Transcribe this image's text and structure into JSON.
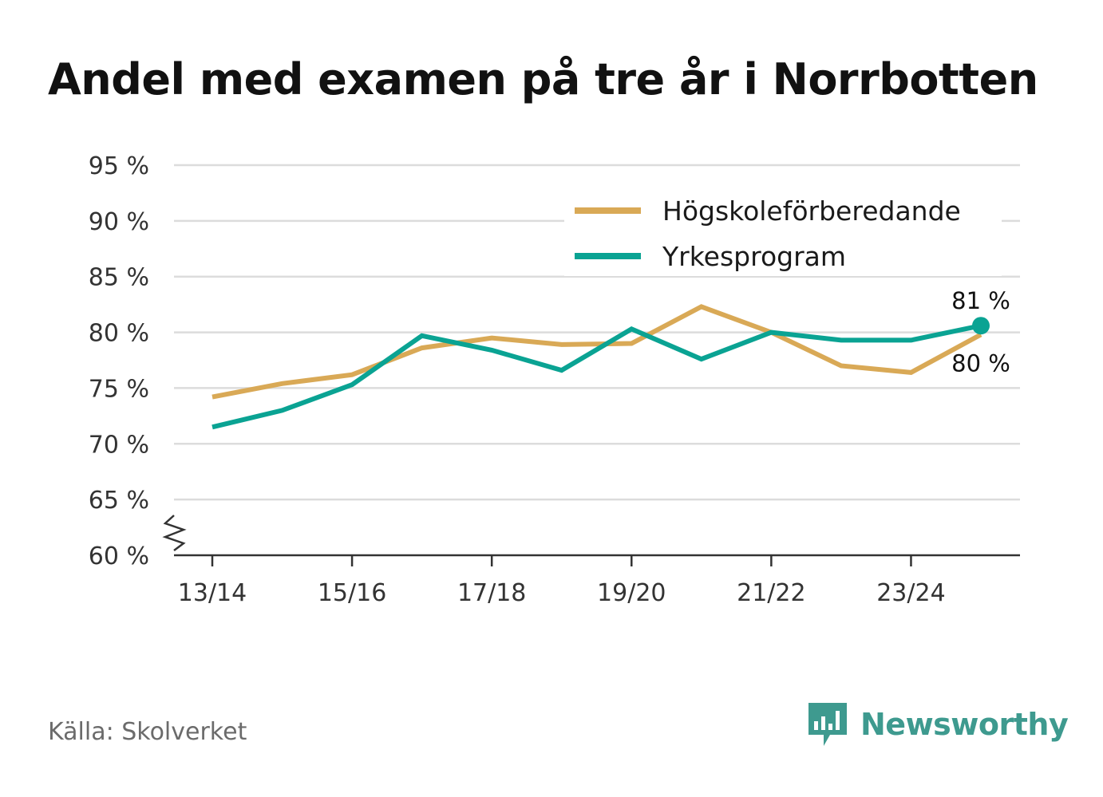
{
  "title": "Andel med examen på tre år i Norrbotten",
  "source": "Källa: Skolverket",
  "brand": {
    "name": "Newsworthy",
    "icon": "newsworthy-logo-icon",
    "color": "#3e9a8f"
  },
  "chart_data": {
    "type": "line",
    "x": [
      "13/14",
      "14/15",
      "15/16",
      "16/17",
      "17/18",
      "18/19",
      "19/20",
      "20/21",
      "21/22",
      "22/23",
      "23/24",
      "24/25"
    ],
    "x_tick_labels": [
      "13/14",
      "15/16",
      "17/18",
      "19/20",
      "21/22",
      "23/24"
    ],
    "ylim": [
      60,
      95
    ],
    "y_ticks": [
      60,
      65,
      70,
      75,
      80,
      85,
      90,
      95
    ],
    "y_tick_labels": [
      "60 %",
      "65 %",
      "70 %",
      "75 %",
      "80 %",
      "85 %",
      "90 %",
      "95 %"
    ],
    "y_axis_break": true,
    "grid": true,
    "legend_position": "top-right",
    "series": [
      {
        "name": "Högskoleförberedande",
        "color": "#d9a956",
        "values": [
          74.2,
          75.4,
          76.2,
          78.6,
          79.5,
          78.9,
          79.0,
          82.3,
          80.0,
          77.0,
          76.4,
          79.8
        ],
        "end_label": "80 %"
      },
      {
        "name": "Yrkesprogram",
        "color": "#0aa393",
        "values": [
          71.5,
          73.0,
          75.3,
          79.7,
          78.4,
          76.6,
          80.3,
          77.6,
          80.0,
          79.3,
          79.3,
          80.6
        ],
        "end_label": "81 %"
      }
    ]
  }
}
